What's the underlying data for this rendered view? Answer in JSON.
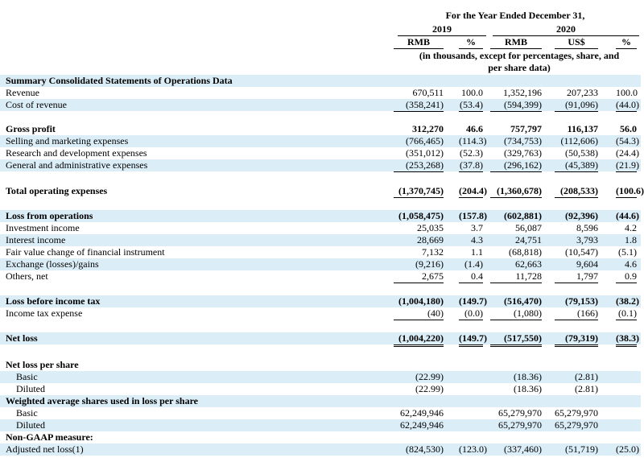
{
  "header": {
    "title": "For the Year Ended December 31,",
    "years": [
      "2019",
      "2020"
    ],
    "units": [
      "RMB",
      "%",
      "RMB",
      "US$",
      "%"
    ],
    "note": [
      "(in thousands, except for percentages, share, and",
      "per share data)"
    ]
  },
  "table": {
    "rows": [
      {
        "label": "Summary Consolidated Statements of Operations Data",
        "cells": [
          null,
          null,
          null,
          null,
          null
        ]
      },
      {
        "label": "Revenue",
        "cells": [
          "670,511",
          "100.0",
          "1,352,196",
          "207,233",
          "100.0"
        ]
      },
      {
        "label": "Cost of revenue",
        "cells": [
          "(358,241)",
          "(53.4)",
          "(594,399)",
          "(91,096)",
          "(44.0)"
        ]
      },
      {
        "label": "Gross profit",
        "cells": [
          "312,270",
          "46.6",
          "757,797",
          "116,137",
          "56.0"
        ]
      },
      {
        "label": "Selling and marketing expenses",
        "cells": [
          "(766,465)",
          "(114.3)",
          "(734,753)",
          "(112,606)",
          "(54.3)"
        ]
      },
      {
        "label": "Research and development expenses",
        "cells": [
          "(351,012)",
          "(52.3)",
          "(329,763)",
          "(50,538)",
          "(24.4)"
        ]
      },
      {
        "label": "General and administrative expenses",
        "cells": [
          "(253,268)",
          "(37.8)",
          "(296,162)",
          "(45,389)",
          "(21.9)"
        ]
      },
      {
        "label": "Total operating expenses",
        "cells": [
          "(1,370,745)",
          "(204.4)",
          "(1,360,678)",
          "(208,533)",
          "(100.6)"
        ]
      },
      {
        "label": "Loss from operations",
        "cells": [
          "(1,058,475)",
          "(157.8)",
          "(602,881)",
          "(92,396)",
          "(44.6)"
        ]
      },
      {
        "label": "Investment income",
        "cells": [
          "25,035",
          "3.7",
          "56,087",
          "8,596",
          "4.2"
        ]
      },
      {
        "label": "Interest income",
        "cells": [
          "28,669",
          "4.3",
          "24,751",
          "3,793",
          "1.8"
        ]
      },
      {
        "label": "Fair value change of financial instrument",
        "cells": [
          "7,132",
          "1.1",
          "(68,818)",
          "(10,547)",
          "(5.1)"
        ]
      },
      {
        "label": "Exchange (losses)/gains",
        "cells": [
          "(9,216)",
          "(1.4)",
          "62,663",
          "9,604",
          "4.6"
        ]
      },
      {
        "label": "Others, net",
        "cells": [
          "2,675",
          "0.4",
          "11,728",
          "1,797",
          "0.9"
        ]
      },
      {
        "label": "Loss before income tax",
        "cells": [
          "(1,004,180)",
          "(149.7)",
          "(516,470)",
          "(79,153)",
          "(38.2)"
        ]
      },
      {
        "label": "Income tax expense",
        "cells": [
          "(40)",
          "(0.0)",
          "(1,080)",
          "(166)",
          "(0.1)"
        ]
      },
      {
        "label": "Net loss",
        "cells": [
          "(1,004,220)",
          "(149.7)",
          "(517,550)",
          "(79,319)",
          "(38.3)"
        ]
      },
      {
        "label": "Net loss per share",
        "cells": [
          null,
          null,
          null,
          null,
          null
        ]
      },
      {
        "label": "Basic",
        "cells": [
          "(22.99)",
          null,
          "(18.36)",
          "(2.81)",
          null
        ]
      },
      {
        "label": "Diluted",
        "cells": [
          "(22.99)",
          null,
          "(18.36)",
          "(2.81)",
          null
        ]
      },
      {
        "label": "Weighted average shares used in loss per share",
        "cells": [
          null,
          null,
          null,
          null,
          null
        ]
      },
      {
        "label": "Basic",
        "cells": [
          "62,249,946",
          null,
          "65,279,970",
          "65,279,970",
          null
        ]
      },
      {
        "label": "Diluted",
        "cells": [
          "62,249,946",
          null,
          "65,279,970",
          "65,279,970",
          null
        ]
      },
      {
        "label": "Non-GAAP measure:",
        "cells": [
          null,
          null,
          null,
          null,
          null
        ]
      },
      {
        "label": "Adjusted net loss(1)",
        "cells": [
          "(824,530)",
          "(123.0)",
          "(337,460)",
          "(51,719)",
          "(25.0)"
        ]
      }
    ]
  }
}
